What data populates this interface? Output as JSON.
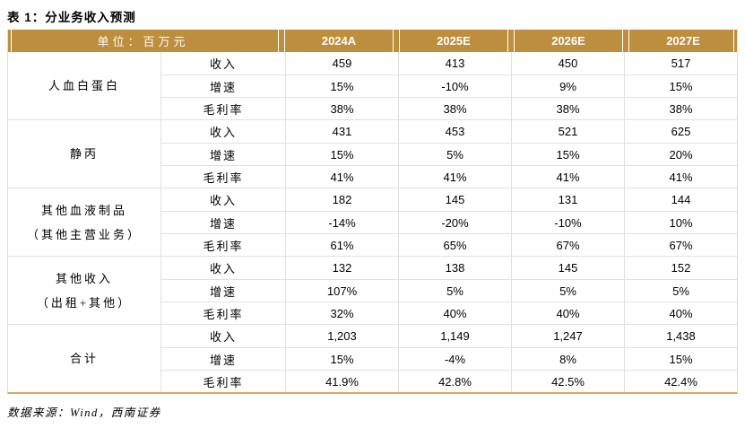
{
  "title": "表 1：分业务收入预测",
  "table": {
    "unit_label": "单位：百万元",
    "years": [
      "2024A",
      "2025E",
      "2026E",
      "2027E"
    ],
    "groups": [
      {
        "name1": "人血白蛋白",
        "rows": [
          {
            "metric": "收入",
            "v": [
              "459",
              "413",
              "450",
              "517"
            ]
          },
          {
            "metric": "增速",
            "v": [
              "15%",
              "-10%",
              "9%",
              "15%"
            ]
          },
          {
            "metric": "毛利率",
            "v": [
              "38%",
              "38%",
              "38%",
              "38%"
            ]
          }
        ]
      },
      {
        "name1": "静丙",
        "rows": [
          {
            "metric": "收入",
            "v": [
              "431",
              "453",
              "521",
              "625"
            ]
          },
          {
            "metric": "增速",
            "v": [
              "15%",
              "5%",
              "15%",
              "20%"
            ]
          },
          {
            "metric": "毛利率",
            "v": [
              "41%",
              "41%",
              "41%",
              "41%"
            ]
          }
        ]
      },
      {
        "name1": "其他血液制品",
        "name2": "（其他主营业务）",
        "rows": [
          {
            "metric": "收入",
            "v": [
              "182",
              "145",
              "131",
              "144"
            ]
          },
          {
            "metric": "增速",
            "v": [
              "-14%",
              "-20%",
              "-10%",
              "10%"
            ]
          },
          {
            "metric": "毛利率",
            "v": [
              "61%",
              "65%",
              "67%",
              "67%"
            ]
          }
        ]
      },
      {
        "name1": "其他收入",
        "name2": "（出租+其他）",
        "rows": [
          {
            "metric": "收入",
            "v": [
              "132",
              "138",
              "145",
              "152"
            ]
          },
          {
            "metric": "增速",
            "v": [
              "107%",
              "5%",
              "5%",
              "5%"
            ]
          },
          {
            "metric": "毛利率",
            "v": [
              "32%",
              "40%",
              "40%",
              "40%"
            ]
          }
        ]
      },
      {
        "name1": "合计",
        "rows": [
          {
            "metric": "收入",
            "v": [
              "1,203",
              "1,149",
              "1,247",
              "1,438"
            ]
          },
          {
            "metric": "增速",
            "v": [
              "15%",
              "-4%",
              "8%",
              "15%"
            ]
          },
          {
            "metric": "毛利率",
            "v": [
              "41.9%",
              "42.8%",
              "42.5%",
              "42.4%"
            ]
          }
        ]
      }
    ]
  },
  "source": "数据来源：Wind，西南证券",
  "colors": {
    "header_gold": "#be8e3f",
    "bottom_border": "#dfa95c",
    "grid_line": "#e0e0e0",
    "header_text": "#ffffff"
  }
}
